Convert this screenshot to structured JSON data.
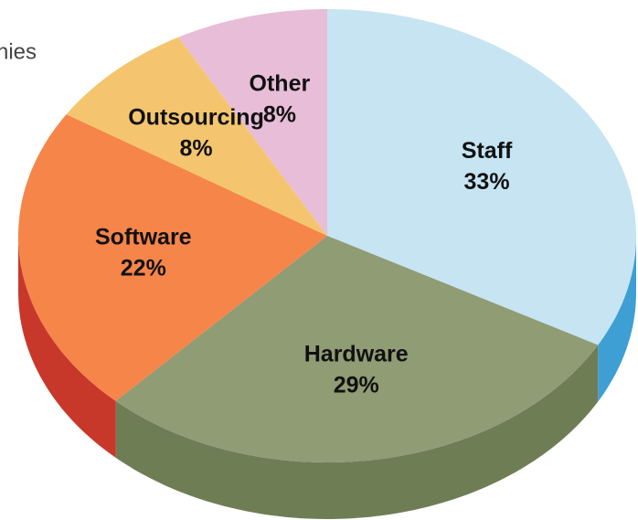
{
  "chart_data": {
    "type": "pie",
    "categories": [
      "Staff",
      "Hardware",
      "Software",
      "Outsourcing",
      "Other"
    ],
    "values": [
      33,
      29,
      22,
      8,
      8
    ],
    "value_labels": [
      "33%",
      "29%",
      "22%",
      "8%",
      "8%"
    ],
    "colors": [
      "#c6e4f2",
      "#8f9c74",
      "#f6854a",
      "#f4c56e",
      "#e7bdd8"
    ],
    "side_colors": [
      "#3d9fd3",
      "#6f7d55",
      "#c8382a",
      "#d59a3a",
      "#b98aa8"
    ],
    "start_angle": 0,
    "direction": "clockwise",
    "annotations": [
      "nies"
    ]
  }
}
